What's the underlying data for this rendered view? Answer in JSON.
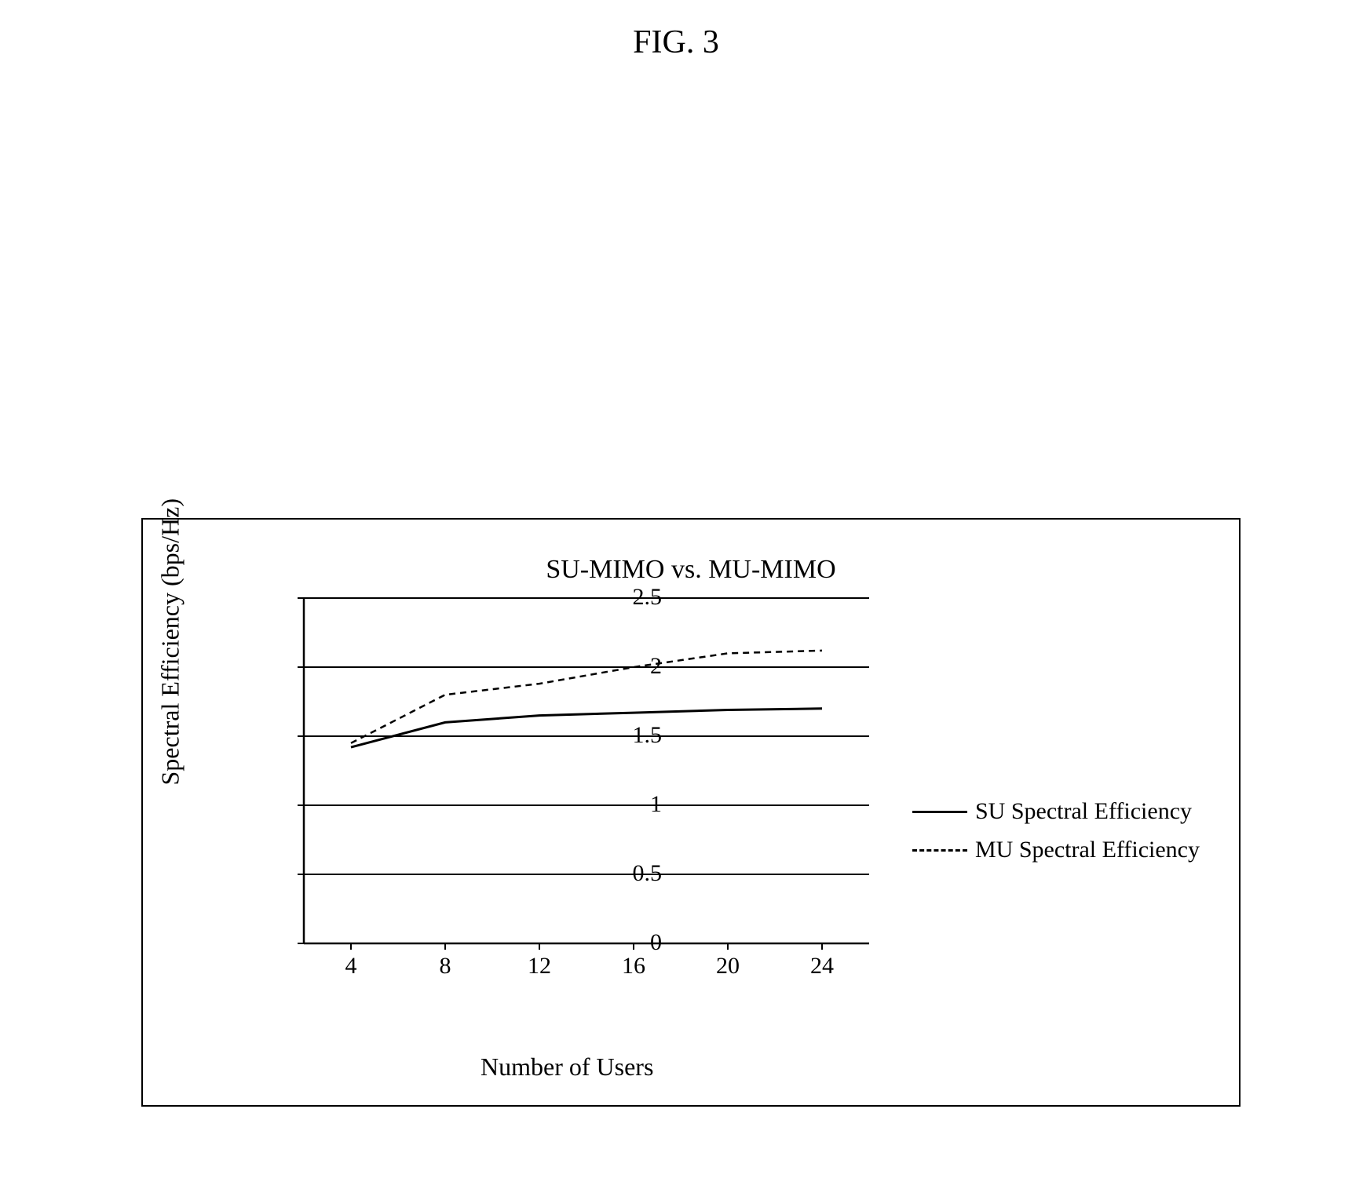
{
  "figure_label": "FIG. 3",
  "chart": {
    "type": "line",
    "title": "SU-MIMO vs. MU-MIMO",
    "x_axis": {
      "label": "Number of Users",
      "ticks": [
        4,
        8,
        12,
        16,
        20,
        24
      ],
      "min": 2,
      "max": 26
    },
    "y_axis": {
      "label": "Spectral Efficiency (bps/Hz)",
      "ticks": [
        0,
        0.5,
        1,
        1.5,
        2,
        2.5
      ],
      "min": 0,
      "max": 2.5
    },
    "series": [
      {
        "name": "SU Spectral Efficiency",
        "style": "solid",
        "color": "#000000",
        "line_width": 3,
        "data": [
          {
            "x": 4,
            "y": 1.42
          },
          {
            "x": 8,
            "y": 1.6
          },
          {
            "x": 12,
            "y": 1.65
          },
          {
            "x": 16,
            "y": 1.67
          },
          {
            "x": 20,
            "y": 1.69
          },
          {
            "x": 24,
            "y": 1.7
          }
        ]
      },
      {
        "name": "MU Spectral Efficiency",
        "style": "dashed",
        "color": "#000000",
        "line_width": 2.5,
        "dash_pattern": "8,6",
        "data": [
          {
            "x": 4,
            "y": 1.45
          },
          {
            "x": 8,
            "y": 1.8
          },
          {
            "x": 12,
            "y": 1.88
          },
          {
            "x": 16,
            "y": 2.0
          },
          {
            "x": 20,
            "y": 2.1
          },
          {
            "x": 24,
            "y": 2.12
          }
        ]
      }
    ],
    "background_color": "#ffffff",
    "gridline_color": "#000000",
    "axis_color": "#000000",
    "font_family": "Times New Roman",
    "tick_fontsize": 30,
    "label_fontsize": 32,
    "title_fontsize": 34
  }
}
